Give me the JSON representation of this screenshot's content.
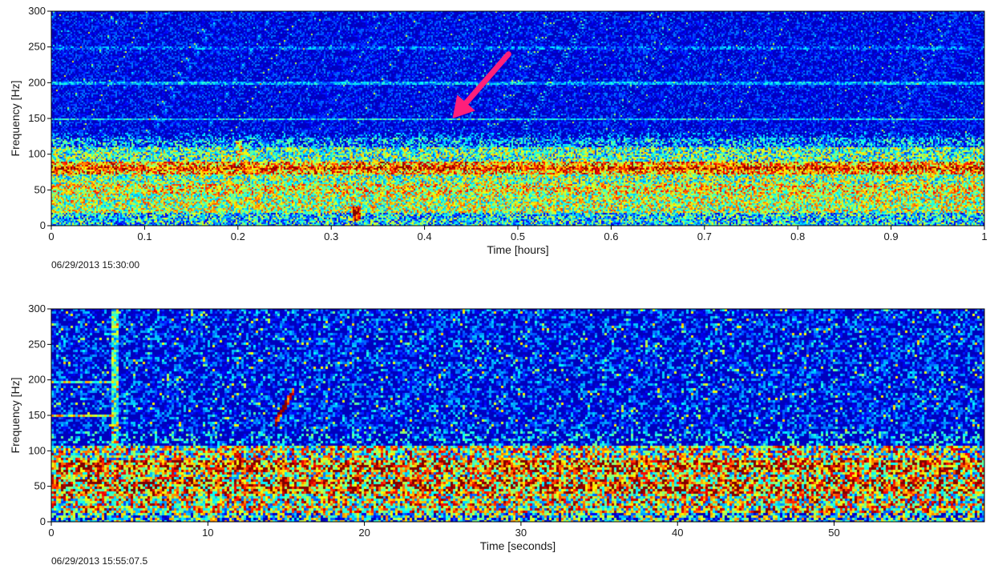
{
  "chart_data": [
    {
      "type": "heatmap",
      "xlabel": "Time [hours]",
      "ylabel": "Frequency [Hz]",
      "xlim": [
        0,
        1
      ],
      "ylim": [
        0,
        300
      ],
      "xticks": [
        0,
        0.1,
        0.2,
        0.3,
        0.4,
        0.5,
        0.6,
        0.7,
        0.8,
        0.9,
        1
      ],
      "xtick_labels": [
        "0",
        "0.1",
        "0.2",
        "0.3",
        "0.4",
        "0.5",
        "0.6",
        "0.7",
        "0.8",
        "0.9",
        "1"
      ],
      "yticks": [
        0,
        50,
        100,
        150,
        200,
        250,
        300
      ],
      "timestamp": "06/29/2013 15:30:00",
      "colormap": "jet",
      "grid": false,
      "bands": [
        {
          "f_low": 0,
          "f_high": 20,
          "level": 0.35
        },
        {
          "f_low": 20,
          "f_high": 45,
          "level": 0.55
        },
        {
          "f_low": 45,
          "f_high": 60,
          "level": 0.62
        },
        {
          "f_low": 60,
          "f_high": 72,
          "level": 0.5
        },
        {
          "f_low": 72,
          "f_high": 90,
          "level": 0.72
        },
        {
          "f_low": 90,
          "f_high": 110,
          "level": 0.45
        },
        {
          "f_low": 110,
          "f_high": 125,
          "level": 0.25
        }
      ],
      "lines": [
        {
          "freq": 150,
          "level": 0.35
        },
        {
          "freq": 200,
          "level": 0.3
        },
        {
          "freq": 250,
          "level": 0.22
        },
        {
          "freq": 82,
          "level": 0.85
        }
      ],
      "events": [
        {
          "x": 0.327,
          "f_low": 8,
          "f_high": 28,
          "level": 0.95
        },
        {
          "x": 0.2,
          "f_low": 70,
          "f_high": 120,
          "level": 0.6
        }
      ],
      "annotation": {
        "type": "arrow",
        "color": "#ff1f7a",
        "from_x": 0.49,
        "from_y": 240,
        "to_x": 0.43,
        "to_y": 150
      }
    },
    {
      "type": "heatmap",
      "xlabel": "Time [seconds]",
      "ylabel": "Frequency [Hz]",
      "xlim": [
        0,
        59.6
      ],
      "ylim": [
        0,
        300
      ],
      "xticks": [
        0,
        10,
        20,
        30,
        40,
        50
      ],
      "xtick_labels": [
        "0",
        "10",
        "20",
        "30",
        "40",
        "50"
      ],
      "yticks": [
        0,
        50,
        100,
        150,
        200,
        250,
        300
      ],
      "timestamp": "06/29/2013 15:55:07.5",
      "colormap": "jet",
      "grid": false,
      "bands": [
        {
          "f_low": 0,
          "f_high": 15,
          "level": 0.35
        },
        {
          "f_low": 15,
          "f_high": 40,
          "level": 0.6
        },
        {
          "f_low": 40,
          "f_high": 60,
          "level": 0.75
        },
        {
          "f_low": 60,
          "f_high": 72,
          "level": 0.62
        },
        {
          "f_low": 72,
          "f_high": 90,
          "level": 0.78
        },
        {
          "f_low": 90,
          "f_high": 110,
          "level": 0.55
        }
      ],
      "lines": [
        {
          "freq": 150,
          "x_end": 4,
          "level": 0.55
        },
        {
          "freq": 200,
          "x_end": 4,
          "level": 0.5
        }
      ],
      "events": [
        {
          "type": "chirp",
          "x_start": 14.2,
          "x_end": 15.5,
          "f_start": 140,
          "f_end": 190,
          "level": 0.9
        },
        {
          "type": "vertical",
          "x": 4,
          "f_low": 0,
          "f_high": 300,
          "level": 0.45
        }
      ]
    }
  ]
}
